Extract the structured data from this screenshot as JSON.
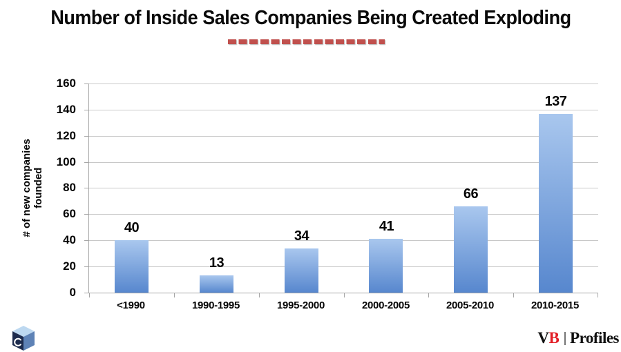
{
  "chart_data": {
    "type": "bar",
    "title": "Number of Inside Sales Companies Being Created Exploding",
    "categories": [
      "<1990",
      "1990-1995",
      "1995-2000",
      "2000-2005",
      "2005-2010",
      "2010-2015"
    ],
    "values": [
      40,
      13,
      34,
      41,
      66,
      137
    ],
    "data_labels": [
      "40",
      "13",
      "34",
      "41",
      "66",
      "137"
    ],
    "xlabel": "",
    "ylabel": "# of new companies founded",
    "ylim": [
      0,
      160
    ],
    "yticks": [
      0,
      20,
      40,
      60,
      80,
      100,
      120,
      140,
      160
    ],
    "grid": true,
    "legend_position": "none"
  },
  "branding": {
    "cube_logo_icon": "isometric-cube-logo",
    "vb_black_letter": "V",
    "vb_red_letter": "B",
    "separator": "|",
    "profiles_label": "Profiles"
  },
  "colors": {
    "text": "#000000",
    "dash_accent": "#c0504d",
    "bar_top": "#a9c7ee",
    "bar_bottom": "#5787ce",
    "gridline": "#c8c8c8",
    "axis": "#a6a6a6",
    "vb_red": "#e21e26",
    "cube_top": "#bdd8f0",
    "cube_left": "#1d2b4d",
    "cube_right": "#5e82b6"
  }
}
